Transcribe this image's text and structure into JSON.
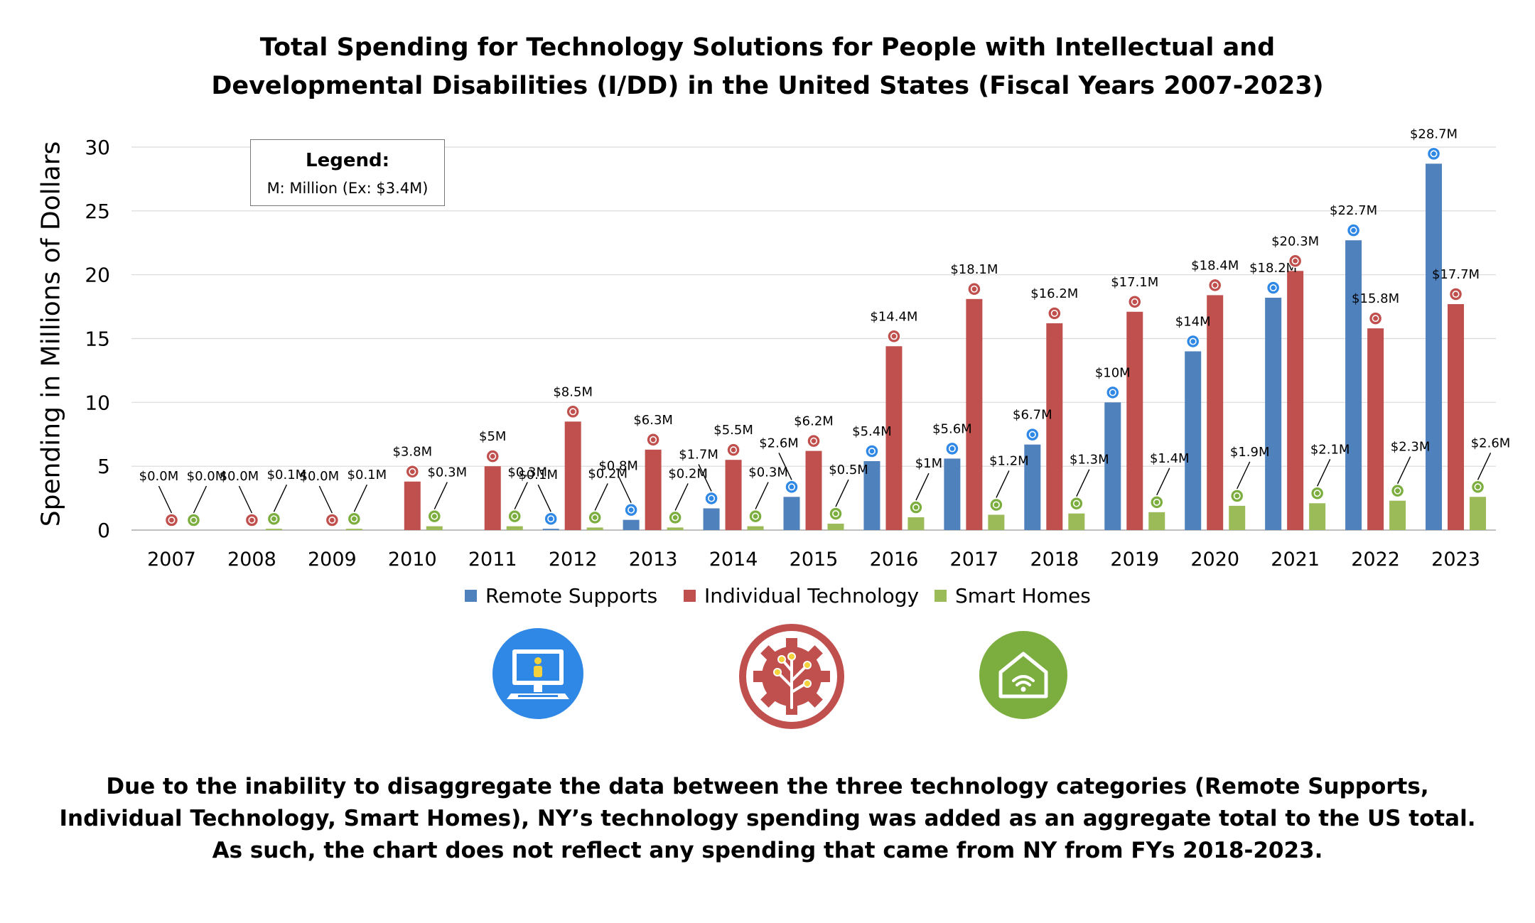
{
  "title_lines": [
    "Total Spending for Technology Solutions for People with Intellectual and",
    "Developmental Disabilities (I/DD) in the United States (Fiscal Years 2007-2023)"
  ],
  "legend_box": {
    "title": "Legend:",
    "text": "M: Million (Ex: $3.4M)"
  },
  "footnote_lines": [
    "Due to the inability to disaggregate the data between the three technology categories (Remote Supports,",
    "Individual Technology, Smart Homes), NY’s technology spending was added as an aggregate total to the US total.",
    "As such, the chart does not reflect any spending that came from NY from FYs 2018-2023."
  ],
  "icons": [
    {
      "name": "remote-supports-computer-icon",
      "color": "#2f88e6"
    },
    {
      "name": "individual-technology-gear-icon",
      "color": "#c0504d"
    },
    {
      "name": "smart-home-wifi-icon",
      "color": "#7cae3f"
    }
  ],
  "chart_data": {
    "type": "bar",
    "ylabel": "Spending in Millions of Dollars",
    "ylim": [
      0,
      30
    ],
    "yticks": [
      "0",
      "5",
      "10",
      "15",
      "20",
      "25",
      "30"
    ],
    "grid": true,
    "legend_position": "bottom",
    "categories": [
      "2007",
      "2008",
      "2009",
      "2010",
      "2011",
      "2012",
      "2013",
      "2014",
      "2015",
      "2016",
      "2017",
      "2018",
      "2019",
      "2020",
      "2021",
      "2022",
      "2023"
    ],
    "series": [
      {
        "name": "Remote Supports",
        "color": "#4f81bd",
        "values": [
          null,
          null,
          null,
          null,
          null,
          0.1,
          0.8,
          1.7,
          2.6,
          5.4,
          5.6,
          6.7,
          10,
          14,
          18.2,
          22.7,
          28.7
        ],
        "labels": [
          "",
          "",
          "",
          "",
          "",
          "$0.1M",
          "$0.8M",
          "$1.7M",
          "$2.6M",
          "$5.4M",
          "$5.6M",
          "$6.7M",
          "$10M",
          "$14M",
          "$18.2M",
          "$22.7M",
          "$28.7M"
        ]
      },
      {
        "name": "Individual Technology",
        "color": "#c0504d",
        "values": [
          0,
          0,
          0,
          3.8,
          5,
          8.5,
          6.3,
          5.5,
          6.2,
          14.4,
          18.1,
          16.2,
          17.1,
          18.4,
          20.3,
          15.8,
          17.7
        ],
        "labels": [
          "$0.0M",
          "$0.0M",
          "$0.0M",
          "$3.8M",
          "$5M",
          "$8.5M",
          "$6.3M",
          "$5.5M",
          "$6.2M",
          "$14.4M",
          "$18.1M",
          "$16.2M",
          "$17.1M",
          "$18.4M",
          "$20.3M",
          "$15.8M",
          "$17.7M"
        ]
      },
      {
        "name": "Smart Homes",
        "color": "#9bbb59",
        "values": [
          0,
          0.1,
          0.1,
          0.3,
          0.3,
          0.2,
          0.2,
          0.3,
          0.5,
          1,
          1.2,
          1.3,
          1.4,
          1.9,
          2.1,
          2.3,
          2.6
        ],
        "labels": [
          "$0.0M",
          "$0.1M",
          "$0.1M",
          "$0.3M",
          "$0.3M",
          "$0.2M",
          "$0.2M",
          "$0.3M",
          "$0.5M",
          "$1M",
          "$1.2M",
          "$1.3M",
          "$1.4M",
          "$1.9M",
          "$2.1M",
          "$2.3M",
          "$2.6M"
        ]
      }
    ]
  }
}
